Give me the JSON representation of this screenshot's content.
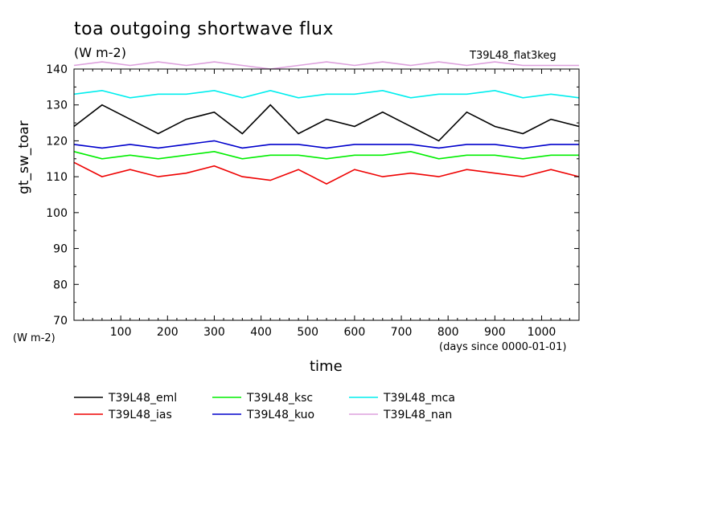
{
  "chart_data": {
    "type": "line",
    "title": "toa outgoing shortwave flux",
    "subtitle": "(W m-2)",
    "run_label": "T39L48_flat3keg",
    "ylabel": "gt_sw_toar",
    "y_units": "(W m-2)",
    "xlabel": "time",
    "x_units": "(days since 0000-01-01)",
    "xlim": [
      0,
      1080
    ],
    "ylim": [
      70,
      140
    ],
    "x_ticks": [
      100,
      200,
      300,
      400,
      500,
      600,
      700,
      800,
      900,
      1000
    ],
    "y_ticks": [
      70,
      80,
      90,
      100,
      110,
      120,
      130,
      140
    ],
    "grid": false,
    "legend_position": "bottom",
    "x": [
      0,
      60,
      120,
      180,
      240,
      300,
      360,
      420,
      480,
      540,
      600,
      660,
      720,
      780,
      840,
      900,
      960,
      1020,
      1080
    ],
    "series": [
      {
        "name": "T39L48_eml",
        "color": "#000000",
        "values": [
          124,
          130,
          126,
          122,
          126,
          128,
          122,
          130,
          122,
          126,
          124,
          128,
          124,
          120,
          128,
          124,
          122,
          126,
          124
        ]
      },
      {
        "name": "T39L48_ias",
        "color": "#ee0000",
        "values": [
          114,
          110,
          112,
          110,
          111,
          113,
          110,
          109,
          112,
          108,
          112,
          110,
          111,
          110,
          112,
          111,
          110,
          112,
          110
        ]
      },
      {
        "name": "T39L48_ksc",
        "color": "#00ee00",
        "values": [
          117,
          115,
          116,
          115,
          116,
          117,
          115,
          116,
          116,
          115,
          116,
          116,
          117,
          115,
          116,
          116,
          115,
          116,
          116
        ]
      },
      {
        "name": "T39L48_kuo",
        "color": "#0000cc",
        "values": [
          119,
          118,
          119,
          118,
          119,
          120,
          118,
          119,
          119,
          118,
          119,
          119,
          119,
          118,
          119,
          119,
          118,
          119,
          119
        ]
      },
      {
        "name": "T39L48_mca",
        "color": "#00eeee",
        "values": [
          133,
          134,
          132,
          133,
          133,
          134,
          132,
          134,
          132,
          133,
          133,
          134,
          132,
          133,
          133,
          134,
          132,
          133,
          132
        ]
      },
      {
        "name": "T39L48_nan",
        "color": "#dda0dd",
        "values": [
          141,
          142,
          141,
          142,
          141,
          142,
          141,
          140,
          141,
          142,
          141,
          142,
          141,
          142,
          141,
          142,
          141,
          141,
          141
        ]
      }
    ]
  }
}
